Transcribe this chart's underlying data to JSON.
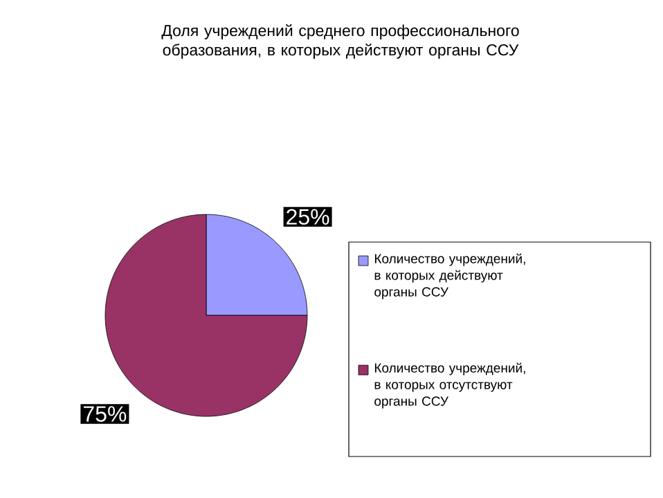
{
  "chart_data": {
    "type": "pie",
    "title": "Доля учреждений среднего профессионального образования, в которых действуют органы ССУ",
    "categories": [
      "Количество учреждений, в которых действуют органы ССУ",
      "Количество учреждений, в которых отсутствуют органы ССУ"
    ],
    "values": [
      25,
      75
    ],
    "colors": [
      "#9999ff",
      "#993366"
    ],
    "value_labels": [
      "25%",
      "75%"
    ],
    "legend": "right"
  }
}
